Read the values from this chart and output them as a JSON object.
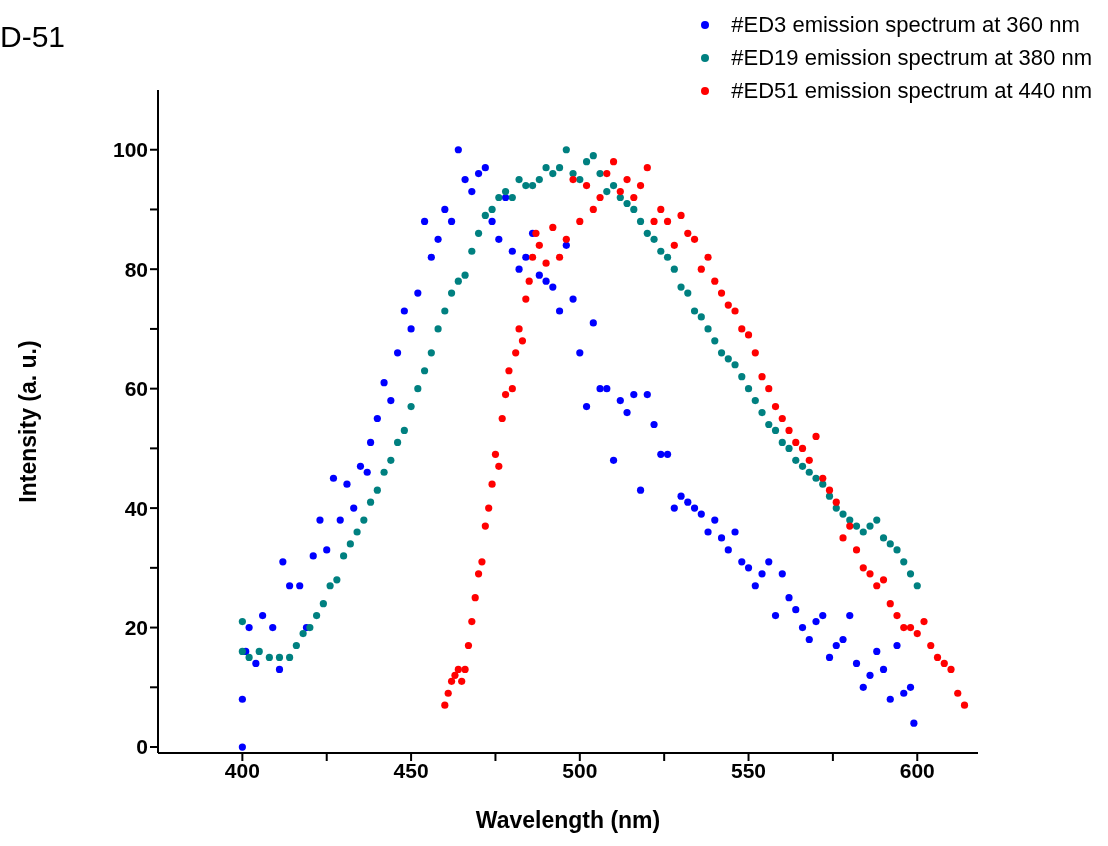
{
  "chart_data": {
    "type": "scatter",
    "xlabel": "Wavelength (nm)",
    "ylabel": "Intensity (a. u.)",
    "annotations": [
      "D-51"
    ],
    "xlim": [
      375,
      618
    ],
    "xticks": [
      400,
      {
        "value": 425,
        "label": null
      },
      450,
      {
        "value": 475,
        "label": null
      },
      500,
      {
        "value": 525,
        "label": null
      },
      550,
      {
        "value": 575,
        "label": null
      },
      600
    ],
    "ylim": [
      -1,
      110
    ],
    "yticks": [
      0,
      {
        "value": 10,
        "label": null
      },
      20,
      {
        "value": 30,
        "label": null
      },
      40,
      {
        "value": 50,
        "label": null
      },
      60,
      {
        "value": 70,
        "label": null
      },
      80,
      {
        "value": 90,
        "label": null
      },
      100
    ],
    "grid": false,
    "legend": "top right",
    "marker": "circle",
    "series": [
      {
        "name": "#ED3 emission spectrum at 360 nm",
        "color": "#0000ff",
        "x": [
          400,
          400,
          401,
          402,
          404,
          406,
          409,
          411,
          412,
          414,
          417,
          419,
          421,
          423,
          425,
          427,
          429,
          431,
          433,
          435,
          437,
          438,
          440,
          442,
          444,
          446,
          448,
          450,
          452,
          454,
          456,
          458,
          460,
          462,
          464,
          466,
          468,
          470,
          472,
          474,
          476,
          478,
          480,
          482,
          484,
          486,
          488,
          490,
          492,
          494,
          496,
          498,
          500,
          502,
          504,
          506,
          508,
          510,
          512,
          514,
          516,
          518,
          520,
          522,
          524,
          526,
          528,
          530,
          532,
          534,
          536,
          538,
          540,
          542,
          544,
          546,
          548,
          550,
          552,
          554,
          556,
          558,
          560,
          562,
          564,
          566,
          568,
          570,
          572,
          574,
          576,
          578,
          580,
          582,
          584,
          586,
          588,
          590,
          592,
          594,
          596,
          598,
          599
        ],
        "values": [
          0,
          8,
          16,
          20,
          14,
          22,
          20,
          13,
          31,
          27,
          27,
          20,
          32,
          38,
          33,
          45,
          38,
          44,
          40,
          47,
          46,
          51,
          55,
          61,
          58,
          66,
          73,
          70,
          76,
          88,
          82,
          85,
          90,
          88,
          100,
          95,
          93,
          96,
          97,
          88,
          85,
          92,
          83,
          80,
          82,
          86,
          79,
          78,
          77,
          73,
          84,
          75,
          66,
          57,
          71,
          60,
          60,
          48,
          58,
          56,
          59,
          43,
          59,
          54,
          49,
          49,
          40,
          42,
          41,
          40,
          39,
          36,
          38,
          35,
          33,
          36,
          31,
          30,
          27,
          29,
          31,
          22,
          29,
          25,
          23,
          20,
          18,
          21,
          22,
          15,
          17,
          18,
          22,
          14,
          10,
          12,
          16,
          13,
          8,
          17,
          9,
          10,
          4
        ]
      },
      {
        "name": "#ED19 emission spectrum at 380 nm",
        "color": "#008080",
        "x": [
          400,
          400,
          402,
          405,
          408,
          411,
          414,
          416,
          418,
          420,
          422,
          424,
          426,
          428,
          430,
          432,
          434,
          436,
          438,
          440,
          442,
          444,
          446,
          448,
          450,
          452,
          454,
          456,
          458,
          460,
          462,
          464,
          466,
          468,
          470,
          472,
          474,
          476,
          478,
          480,
          482,
          484,
          486,
          488,
          490,
          492,
          494,
          496,
          498,
          500,
          502,
          504,
          506,
          508,
          510,
          512,
          514,
          516,
          518,
          520,
          522,
          524,
          526,
          528,
          530,
          532,
          534,
          536,
          538,
          540,
          542,
          544,
          546,
          548,
          550,
          552,
          554,
          556,
          558,
          560,
          562,
          564,
          566,
          568,
          570,
          572,
          574,
          576,
          578,
          580,
          582,
          584,
          586,
          588,
          590,
          592,
          594,
          596,
          598,
          600
        ],
        "values": [
          21,
          16,
          15,
          16,
          15,
          15,
          15,
          17,
          19,
          20,
          22,
          24,
          27,
          28,
          32,
          34,
          36,
          38,
          41,
          43,
          46,
          48,
          51,
          53,
          57,
          60,
          63,
          66,
          70,
          73,
          76,
          78,
          79,
          83,
          86,
          89,
          90,
          92,
          93,
          92,
          95,
          94,
          94,
          95,
          97,
          96,
          97,
          100,
          96,
          95,
          98,
          99,
          96,
          93,
          94,
          92,
          91,
          90,
          88,
          86,
          85,
          83,
          82,
          80,
          77,
          76,
          73,
          72,
          70,
          68,
          66,
          65,
          64,
          62,
          60,
          58,
          56,
          54,
          53,
          51,
          50,
          48,
          47,
          46,
          45,
          44,
          42,
          40,
          39,
          38,
          37,
          36,
          37,
          38,
          35,
          34,
          33,
          31,
          29,
          27
        ]
      },
      {
        "name": "#ED51 emission spectrum at 440 nm",
        "color": "#ff0000",
        "x": [
          460,
          461,
          462,
          463,
          464,
          465,
          466,
          467,
          468,
          469,
          470,
          471,
          472,
          473,
          474,
          475,
          476,
          477,
          478,
          479,
          480,
          481,
          482,
          483,
          484,
          485,
          486,
          487,
          488,
          490,
          492,
          494,
          496,
          498,
          500,
          502,
          504,
          506,
          508,
          510,
          512,
          514,
          516,
          518,
          520,
          522,
          524,
          526,
          528,
          530,
          532,
          534,
          536,
          538,
          540,
          542,
          544,
          546,
          548,
          550,
          552,
          554,
          556,
          558,
          560,
          562,
          564,
          566,
          568,
          570,
          572,
          574,
          576,
          578,
          580,
          582,
          584,
          586,
          588,
          590,
          592,
          594,
          596,
          598,
          600,
          602,
          604,
          606,
          608,
          610,
          612,
          614
        ],
        "values": [
          7,
          9,
          11,
          12,
          13,
          11,
          13,
          17,
          21,
          25,
          29,
          31,
          37,
          40,
          44,
          49,
          47,
          55,
          59,
          63,
          60,
          66,
          70,
          68,
          75,
          78,
          82,
          86,
          84,
          81,
          87,
          82,
          85,
          95,
          88,
          94,
          90,
          92,
          96,
          98,
          93,
          95,
          92,
          94,
          97,
          88,
          90,
          88,
          84,
          89,
          86,
          85,
          80,
          82,
          78,
          76,
          74,
          73,
          70,
          69,
          66,
          62,
          60,
          57,
          55,
          53,
          51,
          50,
          48,
          52,
          45,
          43,
          41,
          35,
          37,
          33,
          30,
          29,
          27,
          28,
          24,
          22,
          20,
          20,
          19,
          21,
          17,
          15,
          14,
          13,
          9,
          7
        ]
      }
    ]
  }
}
